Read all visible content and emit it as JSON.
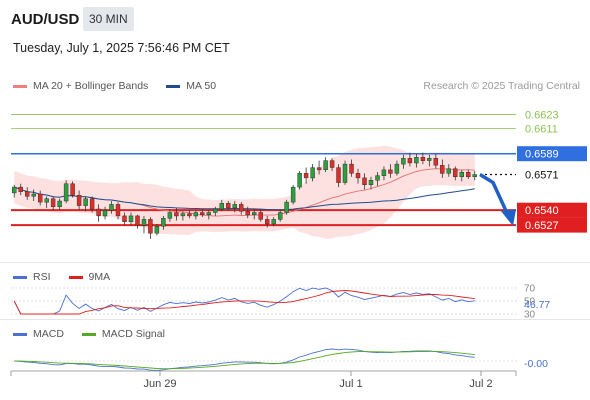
{
  "header": {
    "symbol": "AUD/USD",
    "timeframe": "30 MIN",
    "datetime": "Tuesday, July 1, 2025 7:56:46 PM CET"
  },
  "legend": {
    "bb_label": "MA 20 + Bollinger Bands",
    "ma50_label": "MA 50",
    "bb_color": "#f08080",
    "ma50_color": "#1f4e8c"
  },
  "credit": "Research © 2025 Trading Central",
  "rsi_legend": {
    "rsi_label": "RSI",
    "ma_label": "9MA",
    "rsi_color": "#4a6fd6",
    "ma_color": "#e02020"
  },
  "macd_legend": {
    "macd_label": "MACD",
    "signal_label": "MACD Signal",
    "macd_color": "#4a6fd6",
    "signal_color": "#55aa22"
  },
  "chart_data": {
    "type": "candlestick",
    "ylim": [
      0.6495,
      0.664
    ],
    "x_ticks": [
      "Jun 29",
      "Jul 1",
      "Jul 2"
    ],
    "price_levels": [
      {
        "value": 0.6623,
        "label": "0.6623",
        "kind": "target",
        "color": "#8cc152"
      },
      {
        "value": 0.6611,
        "label": "0.6611",
        "kind": "target",
        "color": "#8cc152"
      },
      {
        "value": 0.6589,
        "label": "0.6589",
        "kind": "resistance",
        "color": "#2f6fe0"
      },
      {
        "value": 0.6571,
        "label": "0.6571",
        "kind": "last",
        "color": "#111111"
      },
      {
        "value": 0.654,
        "label": "0.6540",
        "kind": "support",
        "color": "#e02020"
      },
      {
        "value": 0.6527,
        "label": "0.6527",
        "kind": "support",
        "color": "#e02020"
      }
    ],
    "forecast_arrow": {
      "from": 0.6571,
      "to": 0.6527,
      "color": "#2160c4"
    },
    "candles": [
      [
        0.6555,
        0.6562,
        0.6551,
        0.656
      ],
      [
        0.656,
        0.6563,
        0.6553,
        0.6556
      ],
      [
        0.6556,
        0.656,
        0.6549,
        0.6552
      ],
      [
        0.6552,
        0.6558,
        0.6548,
        0.6554
      ],
      [
        0.6554,
        0.6557,
        0.6544,
        0.6547
      ],
      [
        0.6547,
        0.6552,
        0.6542,
        0.655
      ],
      [
        0.655,
        0.6552,
        0.654,
        0.6543
      ],
      [
        0.6543,
        0.655,
        0.654,
        0.6548
      ],
      [
        0.6548,
        0.6566,
        0.6546,
        0.6563
      ],
      [
        0.6563,
        0.6565,
        0.6551,
        0.6553
      ],
      [
        0.6553,
        0.6557,
        0.654,
        0.6544
      ],
      [
        0.6544,
        0.6552,
        0.6539,
        0.655
      ],
      [
        0.655,
        0.6552,
        0.6538,
        0.6541
      ],
      [
        0.6541,
        0.6545,
        0.653,
        0.6535
      ],
      [
        0.6535,
        0.6543,
        0.6532,
        0.654
      ],
      [
        0.654,
        0.6548,
        0.6537,
        0.6545
      ],
      [
        0.6545,
        0.6547,
        0.6532,
        0.6535
      ],
      [
        0.6535,
        0.6538,
        0.6527,
        0.653
      ],
      [
        0.653,
        0.6538,
        0.6527,
        0.6535
      ],
      [
        0.6535,
        0.6536,
        0.6524,
        0.6527
      ],
      [
        0.6527,
        0.6535,
        0.652,
        0.6532
      ],
      [
        0.6532,
        0.6534,
        0.6515,
        0.652
      ],
      [
        0.652,
        0.6528,
        0.6518,
        0.6526
      ],
      [
        0.6526,
        0.6535,
        0.6523,
        0.6533
      ],
      [
        0.6533,
        0.6541,
        0.653,
        0.6538
      ],
      [
        0.6538,
        0.6542,
        0.6531,
        0.6535
      ],
      [
        0.6535,
        0.6539,
        0.6531,
        0.6537
      ],
      [
        0.6537,
        0.654,
        0.6533,
        0.6535
      ],
      [
        0.6535,
        0.654,
        0.6532,
        0.6538
      ],
      [
        0.6538,
        0.6541,
        0.6534,
        0.6536
      ],
      [
        0.6536,
        0.654,
        0.6532,
        0.6538
      ],
      [
        0.6538,
        0.6543,
        0.6535,
        0.6541
      ],
      [
        0.6541,
        0.6549,
        0.6539,
        0.6546
      ],
      [
        0.6546,
        0.6548,
        0.654,
        0.6542
      ],
      [
        0.6542,
        0.6548,
        0.6538,
        0.6545
      ],
      [
        0.6545,
        0.6547,
        0.6536,
        0.6539
      ],
      [
        0.6539,
        0.6543,
        0.6533,
        0.6536
      ],
      [
        0.6536,
        0.6541,
        0.6532,
        0.6538
      ],
      [
        0.6538,
        0.6541,
        0.653,
        0.6532
      ],
      [
        0.6532,
        0.6535,
        0.6525,
        0.6528
      ],
      [
        0.6528,
        0.6534,
        0.6526,
        0.6532
      ],
      [
        0.6532,
        0.654,
        0.653,
        0.6538
      ],
      [
        0.6538,
        0.6549,
        0.6536,
        0.6547
      ],
      [
        0.6547,
        0.6562,
        0.6545,
        0.656
      ],
      [
        0.656,
        0.6574,
        0.6558,
        0.6572
      ],
      [
        0.6572,
        0.6577,
        0.6563,
        0.6568
      ],
      [
        0.6568,
        0.658,
        0.6565,
        0.6577
      ],
      [
        0.6577,
        0.6583,
        0.6571,
        0.6575
      ],
      [
        0.6575,
        0.6586,
        0.6573,
        0.6583
      ],
      [
        0.6583,
        0.6585,
        0.6574,
        0.6577
      ],
      [
        0.6577,
        0.658,
        0.656,
        0.6564
      ],
      [
        0.6564,
        0.6583,
        0.6562,
        0.658
      ],
      [
        0.658,
        0.6584,
        0.6569,
        0.6572
      ],
      [
        0.6572,
        0.6576,
        0.6563,
        0.6568
      ],
      [
        0.6568,
        0.6572,
        0.6558,
        0.6562
      ],
      [
        0.6562,
        0.6569,
        0.6558,
        0.6566
      ],
      [
        0.6566,
        0.6573,
        0.6561,
        0.657
      ],
      [
        0.657,
        0.6578,
        0.6566,
        0.6575
      ],
      [
        0.6575,
        0.658,
        0.6568,
        0.6572
      ],
      [
        0.6572,
        0.6583,
        0.657,
        0.658
      ],
      [
        0.658,
        0.6588,
        0.6576,
        0.6585
      ],
      [
        0.6585,
        0.659,
        0.6578,
        0.6581
      ],
      [
        0.6581,
        0.6589,
        0.6577,
        0.6586
      ],
      [
        0.6586,
        0.659,
        0.658,
        0.6583
      ],
      [
        0.6583,
        0.6588,
        0.6578,
        0.6585
      ],
      [
        0.6585,
        0.6589,
        0.6576,
        0.6579
      ],
      [
        0.6579,
        0.6584,
        0.6568,
        0.6572
      ],
      [
        0.6572,
        0.658,
        0.6569,
        0.6576
      ],
      [
        0.6576,
        0.6578,
        0.6566,
        0.6569
      ],
      [
        0.6569,
        0.6575,
        0.6565,
        0.6573
      ],
      [
        0.6573,
        0.6575,
        0.6567,
        0.6569
      ],
      [
        0.6569,
        0.6574,
        0.6566,
        0.6571
      ]
    ],
    "rsi": {
      "current": "46.77",
      "levels": [
        70,
        50,
        30
      ]
    },
    "macd": {
      "current": "-0.00"
    }
  }
}
